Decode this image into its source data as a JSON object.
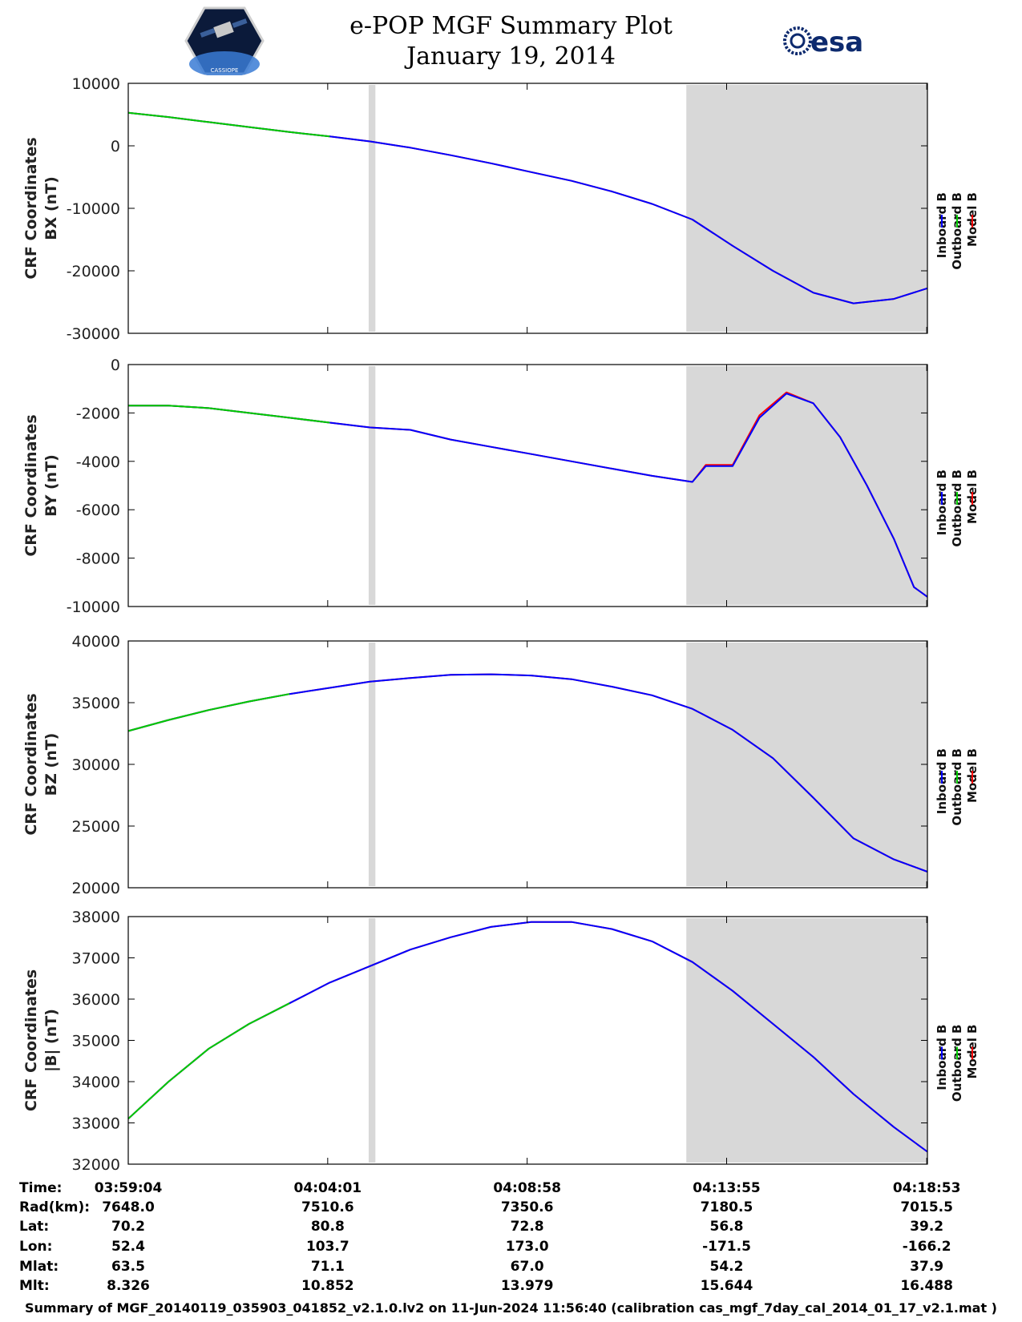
{
  "header": {
    "title": "e-POP MGF Summary Plot",
    "date": "January 19, 2014",
    "left_logo_text": "CASSIOPE",
    "right_logo_text": "esa"
  },
  "colors": {
    "inboard": "#0000ff",
    "outboard": "#00cc00",
    "model": "#ff0000",
    "shade": "#d8d8d8",
    "axis": "#000000"
  },
  "chart_data": [
    {
      "type": "line",
      "panel": "BX",
      "ylabel_line1": "CRF Coordinates",
      "ylabel_line2": "BX (nT)",
      "ylim": [
        -30000,
        10000
      ],
      "yticks": [
        10000,
        0,
        -10000,
        -20000,
        -30000
      ],
      "ytick_labels": [
        "10000",
        "0",
        "-10000",
        "-20000",
        "-30000"
      ],
      "legend": [
        "Inboard B",
        "Outboard B",
        "Model B"
      ],
      "x": [
        0,
        60,
        120,
        180,
        240,
        300,
        360,
        420,
        480,
        540,
        600,
        660,
        720,
        780,
        840,
        900,
        960,
        1020,
        1080,
        1140,
        1190
      ],
      "outboard": [
        5300,
        4600,
        3800,
        3000,
        2200,
        1500
      ],
      "inboard": [
        5300,
        4600,
        3800,
        3000,
        2200,
        1500,
        700,
        -300,
        -1500,
        -2800,
        -4200,
        -5600,
        -7300,
        -9300,
        -11800,
        -16000,
        -20000,
        -23500,
        -25200,
        -24500,
        -22800
      ],
      "model": [
        5300,
        4600,
        3800,
        3000,
        2200,
        1500,
        700,
        -300,
        -1500,
        -2800,
        -4200,
        -5600,
        -7300,
        -9300,
        -11800,
        -16000,
        -20000,
        -23500,
        -25200,
        -24500,
        -22800
      ]
    },
    {
      "type": "line",
      "panel": "BY",
      "ylabel_line1": "CRF Coordinates",
      "ylabel_line2": "BY (nT)",
      "ylim": [
        -10000,
        0
      ],
      "yticks": [
        0,
        -2000,
        -4000,
        -6000,
        -8000,
        -10000
      ],
      "ytick_labels": [
        "0",
        "-2000",
        "-4000",
        "-6000",
        "-8000",
        "-10000"
      ],
      "legend": [
        "Inboard B",
        "Outboard B",
        "Model B"
      ],
      "x": [
        0,
        60,
        120,
        180,
        240,
        300,
        360,
        420,
        480,
        540,
        600,
        660,
        720,
        780,
        840,
        860,
        900,
        940,
        980,
        1020,
        1060,
        1100,
        1140,
        1170,
        1190
      ],
      "outboard": [
        -1700,
        -1700,
        -1800,
        -2000,
        -2200,
        -2400
      ],
      "inboard": [
        -1700,
        -1700,
        -1800,
        -2000,
        -2200,
        -2400,
        -2600,
        -2700,
        -3100,
        -3400,
        -3700,
        -4000,
        -4300,
        -4600,
        -4850,
        -4200,
        -4200,
        -2200,
        -1200,
        -1600,
        -3000,
        -5000,
        -7200,
        -9200,
        -9600
      ],
      "model": [
        -1700,
        -1700,
        -1800,
        -2000,
        -2200,
        -2400,
        -2600,
        -2700,
        -3100,
        -3400,
        -3700,
        -4000,
        -4300,
        -4600,
        -4850,
        -4150,
        -4150,
        -2100,
        -1150,
        -1600,
        -3000,
        -5000,
        -7200,
        -9200,
        -9600
      ]
    },
    {
      "type": "line",
      "panel": "BZ",
      "ylabel_line1": "CRF Coordinates",
      "ylabel_line2": "BZ (nT)",
      "ylim": [
        20000,
        40000
      ],
      "yticks": [
        40000,
        35000,
        30000,
        25000,
        20000
      ],
      "ytick_labels": [
        "40000",
        "35000",
        "30000",
        "25000",
        "20000"
      ],
      "legend": [
        "Inboard B",
        "Outboard B",
        "Model B"
      ],
      "x": [
        0,
        60,
        120,
        180,
        240,
        300,
        360,
        420,
        480,
        540,
        600,
        660,
        720,
        780,
        840,
        900,
        960,
        1020,
        1080,
        1140,
        1190
      ],
      "outboard": [
        32700,
        33600,
        34400,
        35100,
        35700
      ],
      "inboard": [
        32700,
        33600,
        34400,
        35100,
        35700,
        36200,
        36700,
        37000,
        37250,
        37300,
        37200,
        36900,
        36300,
        35600,
        34500,
        32800,
        30500,
        27300,
        24000,
        22300,
        21300
      ],
      "model": [
        32700,
        33600,
        34400,
        35100,
        35700,
        36200,
        36700,
        37000,
        37250,
        37300,
        37200,
        36900,
        36300,
        35600,
        34500,
        32800,
        30500,
        27300,
        24000,
        22300,
        21300
      ]
    },
    {
      "type": "line",
      "panel": "|B|",
      "ylabel_line1": "CRF Coordinates",
      "ylabel_line2": "|B| (nT)",
      "ylim": [
        32000,
        38000
      ],
      "yticks": [
        38000,
        37000,
        36000,
        35000,
        34000,
        33000,
        32000
      ],
      "ytick_labels": [
        "38000",
        "37000",
        "36000",
        "35000",
        "34000",
        "33000",
        "32000"
      ],
      "legend": [
        "Inboard B",
        "Outboard B",
        "Model B"
      ],
      "x": [
        0,
        60,
        120,
        180,
        240,
        300,
        360,
        420,
        480,
        540,
        600,
        660,
        720,
        780,
        840,
        900,
        960,
        1020,
        1080,
        1140,
        1190
      ],
      "outboard": [
        33100,
        34000,
        34800,
        35400,
        35900
      ],
      "inboard": [
        33100,
        34000,
        34800,
        35400,
        35900,
        36400,
        36800,
        37200,
        37500,
        37750,
        37870,
        37870,
        37700,
        37400,
        36900,
        36200,
        35400,
        34600,
        33700,
        32900,
        32300
      ],
      "model": [
        33100,
        34000,
        34800,
        35400,
        35900,
        36400,
        36800,
        37200,
        37500,
        37750,
        37870,
        37870,
        37700,
        37400,
        36900,
        36200,
        35400,
        34600,
        33700,
        32900,
        32300
      ]
    }
  ],
  "x_axis": {
    "range_seconds": [
      0,
      1190
    ],
    "tick_seconds": [
      0,
      297,
      594,
      891,
      1189
    ],
    "shaded_ranges_seconds": [
      [
        358,
        368
      ],
      [
        831,
        1190
      ]
    ]
  },
  "info_table": {
    "labels": [
      "Time:",
      "Rad(km):",
      "Lat:",
      "Lon:",
      "Mlat:",
      "Mlt:"
    ],
    "columns": [
      [
        "03:59:04",
        "7648.0",
        "70.2",
        "52.4",
        "63.5",
        "8.326"
      ],
      [
        "04:04:01",
        "7510.6",
        "80.8",
        "103.7",
        "71.1",
        "10.852"
      ],
      [
        "04:08:58",
        "7350.6",
        "72.8",
        "173.0",
        "67.0",
        "13.979"
      ],
      [
        "04:13:55",
        "7180.5",
        "56.8",
        "-171.5",
        "54.2",
        "15.644"
      ],
      [
        "04:18:53",
        "7015.5",
        "39.2",
        "-166.2",
        "37.9",
        "16.488"
      ]
    ]
  },
  "footer": "Summary of MGF_20140119_035903_041852_v2.1.0.lv2 on 11-Jun-2024 11:56:40 (calibration cas_mgf_7day_cal_2014_01_17_v2.1.mat )"
}
